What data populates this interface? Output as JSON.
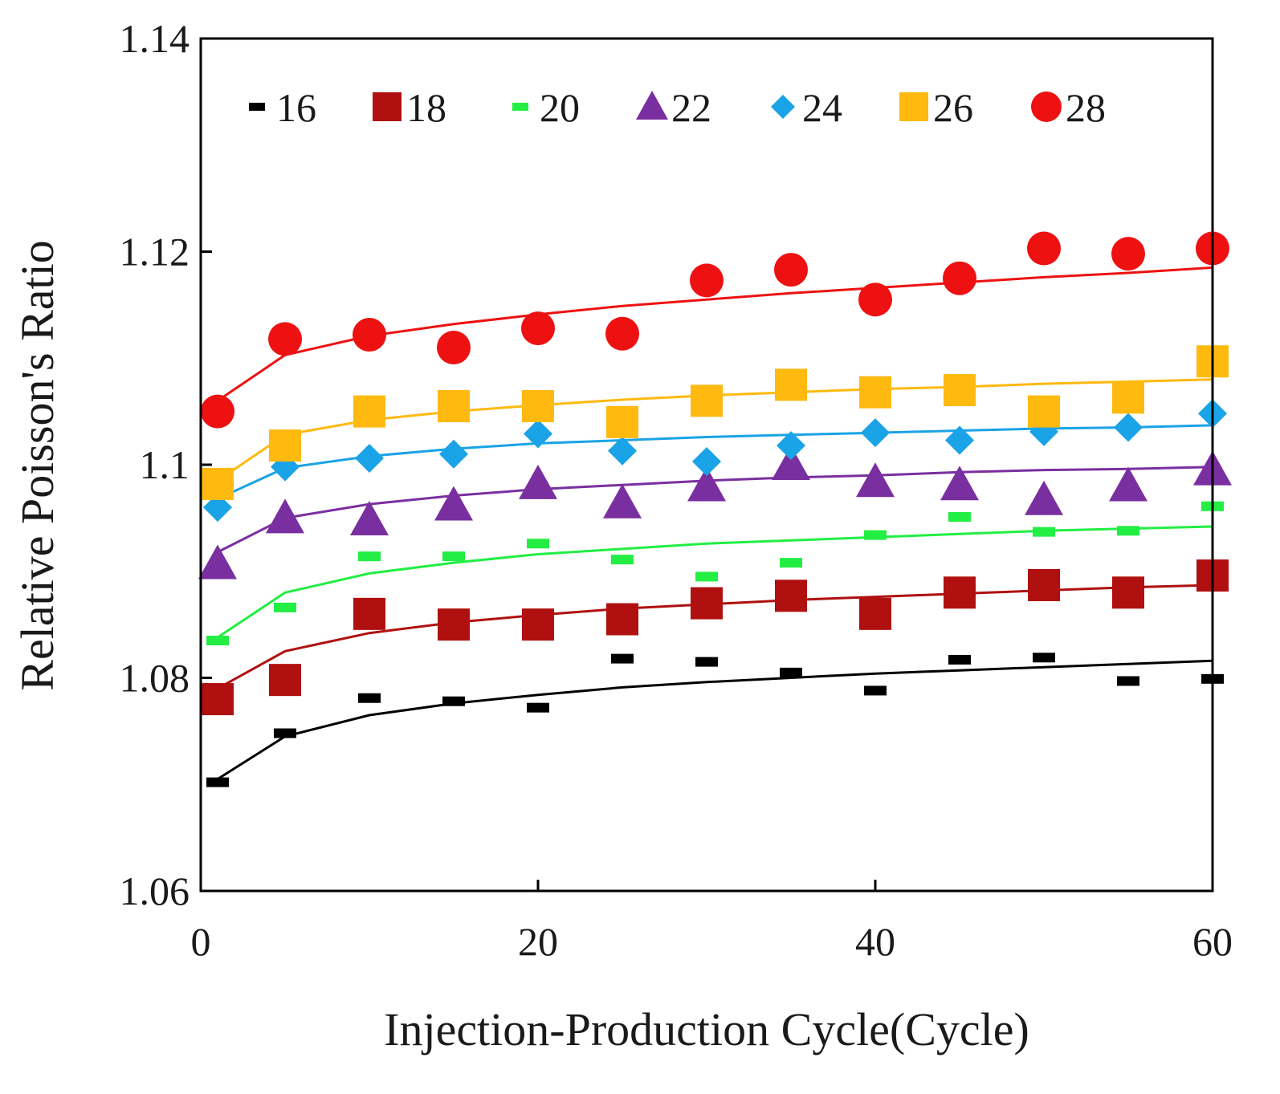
{
  "chart_data": {
    "type": "scatter",
    "title": "",
    "xlabel": "Injection-Production Cycle(Cycle)",
    "ylabel": "Relative Poisson's Ratio",
    "xlim": [
      0,
      60
    ],
    "ylim": [
      1.06,
      1.14
    ],
    "x_ticks": [
      0,
      20,
      40,
      60
    ],
    "y_ticks": [
      1.06,
      1.08,
      1.1,
      1.12,
      1.14
    ],
    "x_tick_labels": [
      "0",
      "20",
      "40",
      "60"
    ],
    "y_tick_labels": [
      "1.06",
      "1.08",
      "1.1",
      "1.12",
      "1.14"
    ],
    "grid": false,
    "legend_position": "top",
    "x": [
      1,
      5,
      10,
      15,
      20,
      25,
      30,
      35,
      40,
      45,
      50,
      55,
      60
    ],
    "series": [
      {
        "name": "16",
        "marker": "dash",
        "color": "#000000",
        "values": [
          1.0702,
          1.0748,
          1.0781,
          1.0778,
          1.0772,
          1.0818,
          1.0815,
          1.0805,
          1.0788,
          1.0817,
          1.0819,
          1.0797,
          1.0799
        ],
        "fit": [
          1.0705,
          1.0745,
          1.0765,
          1.0776,
          1.0784,
          1.0791,
          1.0796,
          1.08,
          1.0804,
          1.0807,
          1.081,
          1.0813,
          1.0816
        ]
      },
      {
        "name": "18",
        "marker": "square",
        "color": "#b01010",
        "values": [
          1.078,
          1.0798,
          1.086,
          1.085,
          1.085,
          1.0855,
          1.087,
          1.0877,
          1.086,
          1.088,
          1.0887,
          1.088,
          1.0896
        ],
        "fit": [
          1.079,
          1.0825,
          1.0842,
          1.0852,
          1.0859,
          1.0865,
          1.0869,
          1.0873,
          1.0876,
          1.0879,
          1.0882,
          1.0885,
          1.0887
        ]
      },
      {
        "name": "20",
        "marker": "dash",
        "color": "#22ee44",
        "values": [
          1.0835,
          1.0866,
          1.0914,
          1.0914,
          1.0926,
          1.0911,
          1.0895,
          1.0908,
          1.0934,
          1.0951,
          1.0937,
          1.0938,
          1.0961
        ],
        "fit": [
          1.0838,
          1.088,
          1.0898,
          1.0908,
          1.0916,
          1.0921,
          1.0926,
          1.0929,
          1.0932,
          1.0935,
          1.0938,
          1.094,
          1.0942
        ]
      },
      {
        "name": "22",
        "marker": "triangle",
        "color": "#7a2fa0",
        "values": [
          1.0907,
          1.095,
          1.0948,
          1.0962,
          1.0982,
          1.0964,
          1.098,
          1.1,
          1.0984,
          1.0981,
          1.0967,
          1.098,
          1.0995
        ],
        "fit": [
          1.0918,
          1.095,
          1.0963,
          1.0971,
          1.0977,
          1.0981,
          1.0985,
          1.0988,
          1.099,
          1.0993,
          1.0995,
          1.0996,
          1.0998
        ]
      },
      {
        "name": "24",
        "marker": "diamond",
        "color": "#1aa3e6",
        "values": [
          1.096,
          1.0998,
          1.1006,
          1.101,
          1.1029,
          1.1013,
          1.1003,
          1.1018,
          1.103,
          1.1023,
          1.1031,
          1.1035,
          1.1048
        ],
        "fit": [
          1.0968,
          1.0997,
          1.1008,
          1.1015,
          1.102,
          1.1023,
          1.1026,
          1.1028,
          1.103,
          1.1032,
          1.1034,
          1.1035,
          1.1037
        ]
      },
      {
        "name": "26",
        "marker": "square",
        "color": "#ffb90f",
        "values": [
          1.0982,
          1.1018,
          1.105,
          1.1055,
          1.1055,
          1.104,
          1.106,
          1.1075,
          1.1068,
          1.107,
          1.105,
          1.1063,
          1.1097
        ],
        "fit": [
          1.0985,
          1.1028,
          1.1042,
          1.105,
          1.1056,
          1.1061,
          1.1065,
          1.1068,
          1.1071,
          1.1073,
          1.1076,
          1.1078,
          1.108
        ]
      },
      {
        "name": "28",
        "marker": "circle",
        "color": "#ee1111",
        "values": [
          1.105,
          1.1118,
          1.1122,
          1.111,
          1.1128,
          1.1123,
          1.1173,
          1.1183,
          1.1155,
          1.1175,
          1.1203,
          1.1198,
          1.1203
        ],
        "fit": [
          1.106,
          1.1103,
          1.1121,
          1.1132,
          1.1141,
          1.1149,
          1.1155,
          1.1161,
          1.1166,
          1.1171,
          1.1176,
          1.118,
          1.1185
        ]
      }
    ]
  }
}
